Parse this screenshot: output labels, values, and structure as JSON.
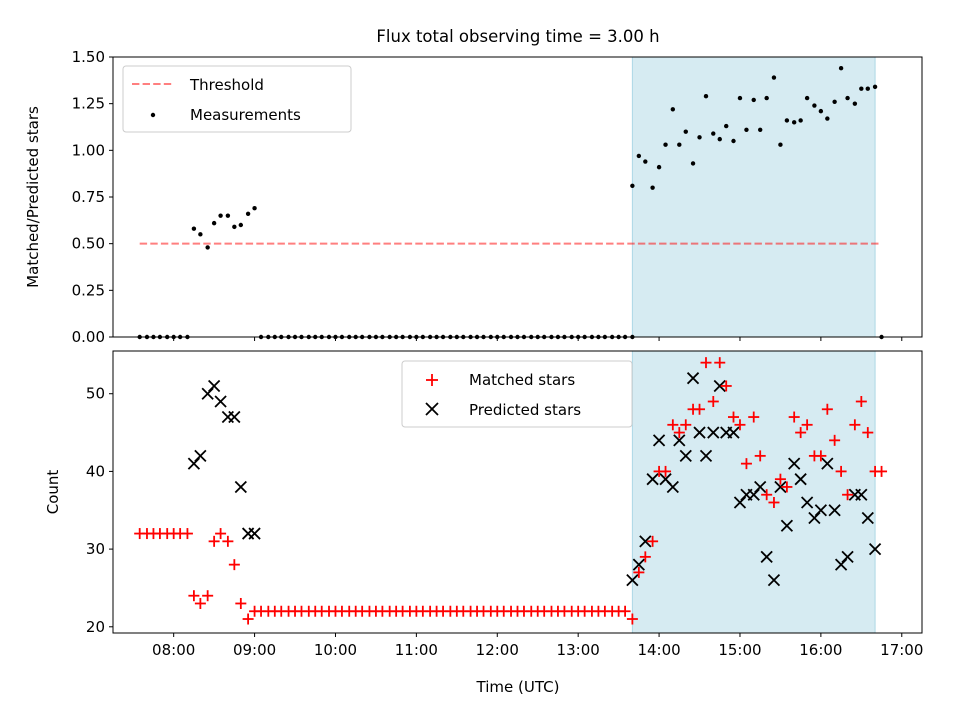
{
  "chart_data": [
    {
      "type": "scatter",
      "title": "Flux total observing time = 3.00 h",
      "xlabel": "",
      "ylabel": "Matched/Predicted stars",
      "xlim": [
        7.25,
        17.25
      ],
      "ylim": [
        0,
        1.5
      ],
      "yticks": [
        "0.00",
        "0.25",
        "0.50",
        "0.75",
        "1.00",
        "1.25",
        "1.50"
      ],
      "shaded_region": [
        13.67,
        16.67
      ],
      "threshold": 0.5,
      "threshold_x": [
        7.58,
        16.75
      ],
      "legend": [
        "Threshold",
        "Measurements"
      ],
      "legend_position": "upper-left",
      "series": [
        {
          "name": "Measurements",
          "points": [
            [
              7.58,
              0
            ],
            [
              7.67,
              0
            ],
            [
              7.75,
              0
            ],
            [
              7.83,
              0
            ],
            [
              7.92,
              0
            ],
            [
              8.0,
              0
            ],
            [
              8.08,
              0
            ],
            [
              8.17,
              0
            ],
            [
              8.25,
              0.58
            ],
            [
              8.33,
              0.55
            ],
            [
              8.42,
              0.48
            ],
            [
              8.5,
              0.61
            ],
            [
              8.58,
              0.65
            ],
            [
              8.67,
              0.65
            ],
            [
              8.75,
              0.59
            ],
            [
              8.83,
              0.6
            ],
            [
              8.92,
              0.66
            ],
            [
              9.0,
              0.69
            ],
            [
              9.08,
              0
            ],
            [
              9.17,
              0
            ],
            [
              9.25,
              0
            ],
            [
              9.33,
              0
            ],
            [
              9.42,
              0
            ],
            [
              9.5,
              0
            ],
            [
              9.58,
              0
            ],
            [
              9.67,
              0
            ],
            [
              9.75,
              0
            ],
            [
              9.83,
              0
            ],
            [
              9.92,
              0
            ],
            [
              10.0,
              0
            ],
            [
              10.08,
              0
            ],
            [
              10.17,
              0
            ],
            [
              10.25,
              0
            ],
            [
              10.33,
              0
            ],
            [
              10.42,
              0
            ],
            [
              10.5,
              0
            ],
            [
              10.58,
              0
            ],
            [
              10.67,
              0
            ],
            [
              10.75,
              0
            ],
            [
              10.83,
              0
            ],
            [
              10.92,
              0
            ],
            [
              11.0,
              0
            ],
            [
              11.08,
              0
            ],
            [
              11.17,
              0
            ],
            [
              11.25,
              0
            ],
            [
              11.33,
              0
            ],
            [
              11.42,
              0
            ],
            [
              11.5,
              0
            ],
            [
              11.58,
              0
            ],
            [
              11.67,
              0
            ],
            [
              11.75,
              0
            ],
            [
              11.83,
              0
            ],
            [
              11.92,
              0
            ],
            [
              12.0,
              0
            ],
            [
              12.08,
              0
            ],
            [
              12.17,
              0
            ],
            [
              12.25,
              0
            ],
            [
              12.33,
              0
            ],
            [
              12.42,
              0
            ],
            [
              12.5,
              0
            ],
            [
              12.58,
              0
            ],
            [
              12.67,
              0
            ],
            [
              12.75,
              0
            ],
            [
              12.83,
              0
            ],
            [
              12.92,
              0
            ],
            [
              13.0,
              0
            ],
            [
              13.08,
              0
            ],
            [
              13.17,
              0
            ],
            [
              13.25,
              0
            ],
            [
              13.33,
              0
            ],
            [
              13.42,
              0
            ],
            [
              13.5,
              0
            ],
            [
              13.58,
              0
            ],
            [
              13.67,
              0
            ],
            [
              13.67,
              0.81
            ],
            [
              13.75,
              0.97
            ],
            [
              13.83,
              0.94
            ],
            [
              13.92,
              0.8
            ],
            [
              14.0,
              0.91
            ],
            [
              14.08,
              1.03
            ],
            [
              14.17,
              1.22
            ],
            [
              14.25,
              1.03
            ],
            [
              14.33,
              1.1
            ],
            [
              14.42,
              0.93
            ],
            [
              14.5,
              1.07
            ],
            [
              14.58,
              1.29
            ],
            [
              14.67,
              1.09
            ],
            [
              14.75,
              1.06
            ],
            [
              14.83,
              1.13
            ],
            [
              14.92,
              1.05
            ],
            [
              15.0,
              1.28
            ],
            [
              15.08,
              1.11
            ],
            [
              15.17,
              1.27
            ],
            [
              15.25,
              1.11
            ],
            [
              15.33,
              1.28
            ],
            [
              15.42,
              1.39
            ],
            [
              15.5,
              1.03
            ],
            [
              15.58,
              1.16
            ],
            [
              15.67,
              1.15
            ],
            [
              15.75,
              1.16
            ],
            [
              15.83,
              1.28
            ],
            [
              15.92,
              1.24
            ],
            [
              16.0,
              1.21
            ],
            [
              16.08,
              1.17
            ],
            [
              16.17,
              1.26
            ],
            [
              16.25,
              1.44
            ],
            [
              16.33,
              1.28
            ],
            [
              16.42,
              1.25
            ],
            [
              16.5,
              1.33
            ],
            [
              16.58,
              1.33
            ],
            [
              16.67,
              1.34
            ],
            [
              16.75,
              0
            ]
          ]
        }
      ]
    },
    {
      "type": "scatter",
      "title": "",
      "xlabel": "Time (UTC)",
      "ylabel": "Count",
      "xlim": [
        7.25,
        17.25
      ],
      "ylim": [
        19.2,
        55.5
      ],
      "xticks": [
        "08:00",
        "09:00",
        "10:00",
        "11:00",
        "12:00",
        "13:00",
        "14:00",
        "15:00",
        "16:00",
        "17:00"
      ],
      "yticks": [
        "20",
        "30",
        "40",
        "50"
      ],
      "shaded_region": [
        13.67,
        16.67
      ],
      "legend": [
        "Matched stars",
        "Predicted stars"
      ],
      "legend_position": "upper-center",
      "series": [
        {
          "name": "Matched stars",
          "points": [
            [
              7.58,
              32
            ],
            [
              7.67,
              32
            ],
            [
              7.75,
              32
            ],
            [
              7.83,
              32
            ],
            [
              7.92,
              32
            ],
            [
              8.0,
              32
            ],
            [
              8.08,
              32
            ],
            [
              8.17,
              32
            ],
            [
              8.25,
              24
            ],
            [
              8.33,
              23
            ],
            [
              8.42,
              24
            ],
            [
              8.5,
              31
            ],
            [
              8.58,
              32
            ],
            [
              8.67,
              31
            ],
            [
              8.75,
              28
            ],
            [
              8.83,
              23
            ],
            [
              8.92,
              21
            ],
            [
              9.0,
              22
            ],
            [
              9.08,
              22
            ],
            [
              9.17,
              22
            ],
            [
              9.25,
              22
            ],
            [
              9.33,
              22
            ],
            [
              9.42,
              22
            ],
            [
              9.5,
              22
            ],
            [
              9.58,
              22
            ],
            [
              9.67,
              22
            ],
            [
              9.75,
              22
            ],
            [
              9.83,
              22
            ],
            [
              9.92,
              22
            ],
            [
              10.0,
              22
            ],
            [
              10.08,
              22
            ],
            [
              10.17,
              22
            ],
            [
              10.25,
              22
            ],
            [
              10.33,
              22
            ],
            [
              10.42,
              22
            ],
            [
              10.5,
              22
            ],
            [
              10.58,
              22
            ],
            [
              10.67,
              22
            ],
            [
              10.75,
              22
            ],
            [
              10.83,
              22
            ],
            [
              10.92,
              22
            ],
            [
              11.0,
              22
            ],
            [
              11.08,
              22
            ],
            [
              11.17,
              22
            ],
            [
              11.25,
              22
            ],
            [
              11.33,
              22
            ],
            [
              11.42,
              22
            ],
            [
              11.5,
              22
            ],
            [
              11.58,
              22
            ],
            [
              11.67,
              22
            ],
            [
              11.75,
              22
            ],
            [
              11.83,
              22
            ],
            [
              11.92,
              22
            ],
            [
              12.0,
              22
            ],
            [
              12.08,
              22
            ],
            [
              12.17,
              22
            ],
            [
              12.25,
              22
            ],
            [
              12.33,
              22
            ],
            [
              12.42,
              22
            ],
            [
              12.5,
              22
            ],
            [
              12.58,
              22
            ],
            [
              12.67,
              22
            ],
            [
              12.75,
              22
            ],
            [
              12.83,
              22
            ],
            [
              12.92,
              22
            ],
            [
              13.0,
              22
            ],
            [
              13.08,
              22
            ],
            [
              13.17,
              22
            ],
            [
              13.25,
              22
            ],
            [
              13.33,
              22
            ],
            [
              13.42,
              22
            ],
            [
              13.5,
              22
            ],
            [
              13.58,
              22
            ],
            [
              13.67,
              21
            ],
            [
              13.75,
              27
            ],
            [
              13.83,
              29
            ],
            [
              13.92,
              31
            ],
            [
              14.0,
              40
            ],
            [
              14.08,
              40
            ],
            [
              14.17,
              46
            ],
            [
              14.25,
              45
            ],
            [
              14.33,
              46
            ],
            [
              14.42,
              48
            ],
            [
              14.5,
              48
            ],
            [
              14.58,
              54
            ],
            [
              14.67,
              49
            ],
            [
              14.75,
              54
            ],
            [
              14.83,
              51
            ],
            [
              14.92,
              47
            ],
            [
              15.0,
              46
            ],
            [
              15.08,
              41
            ],
            [
              15.17,
              47
            ],
            [
              15.25,
              42
            ],
            [
              15.33,
              37
            ],
            [
              15.42,
              36
            ],
            [
              15.5,
              39
            ],
            [
              15.58,
              38
            ],
            [
              15.67,
              47
            ],
            [
              15.75,
              45
            ],
            [
              15.83,
              46
            ],
            [
              15.92,
              42
            ],
            [
              16.0,
              42
            ],
            [
              16.08,
              48
            ],
            [
              16.17,
              44
            ],
            [
              16.25,
              40
            ],
            [
              16.33,
              37
            ],
            [
              16.42,
              46
            ],
            [
              16.5,
              49
            ],
            [
              16.58,
              45
            ],
            [
              16.67,
              40
            ],
            [
              16.75,
              40
            ]
          ]
        },
        {
          "name": "Predicted stars",
          "points": [
            [
              8.25,
              41
            ],
            [
              8.33,
              42
            ],
            [
              8.42,
              50
            ],
            [
              8.5,
              51
            ],
            [
              8.58,
              49
            ],
            [
              8.67,
              47
            ],
            [
              8.75,
              47
            ],
            [
              8.83,
              38
            ],
            [
              8.92,
              32
            ],
            [
              9.0,
              32
            ],
            [
              13.67,
              26
            ],
            [
              13.75,
              28
            ],
            [
              13.83,
              31
            ],
            [
              13.92,
              39
            ],
            [
              14.0,
              44
            ],
            [
              14.08,
              39
            ],
            [
              14.17,
              38
            ],
            [
              14.25,
              44
            ],
            [
              14.33,
              42
            ],
            [
              14.42,
              52
            ],
            [
              14.5,
              45
            ],
            [
              14.58,
              42
            ],
            [
              14.67,
              45
            ],
            [
              14.75,
              51
            ],
            [
              14.83,
              45
            ],
            [
              14.92,
              45
            ],
            [
              15.0,
              36
            ],
            [
              15.08,
              37
            ],
            [
              15.17,
              37
            ],
            [
              15.25,
              38
            ],
            [
              15.33,
              29
            ],
            [
              15.42,
              26
            ],
            [
              15.5,
              38
            ],
            [
              15.58,
              33
            ],
            [
              15.67,
              41
            ],
            [
              15.75,
              39
            ],
            [
              15.83,
              36
            ],
            [
              15.92,
              34
            ],
            [
              16.0,
              35
            ],
            [
              16.08,
              41
            ],
            [
              16.17,
              35
            ],
            [
              16.25,
              28
            ],
            [
              16.33,
              29
            ],
            [
              16.42,
              37
            ],
            [
              16.5,
              37
            ],
            [
              16.58,
              34
            ],
            [
              16.67,
              30
            ]
          ]
        }
      ]
    }
  ],
  "colors": {
    "shade": "#add8e6",
    "threshold": "#ff0000",
    "measurements": "#000000",
    "matched": "#ff0000",
    "predicted": "#000000"
  }
}
